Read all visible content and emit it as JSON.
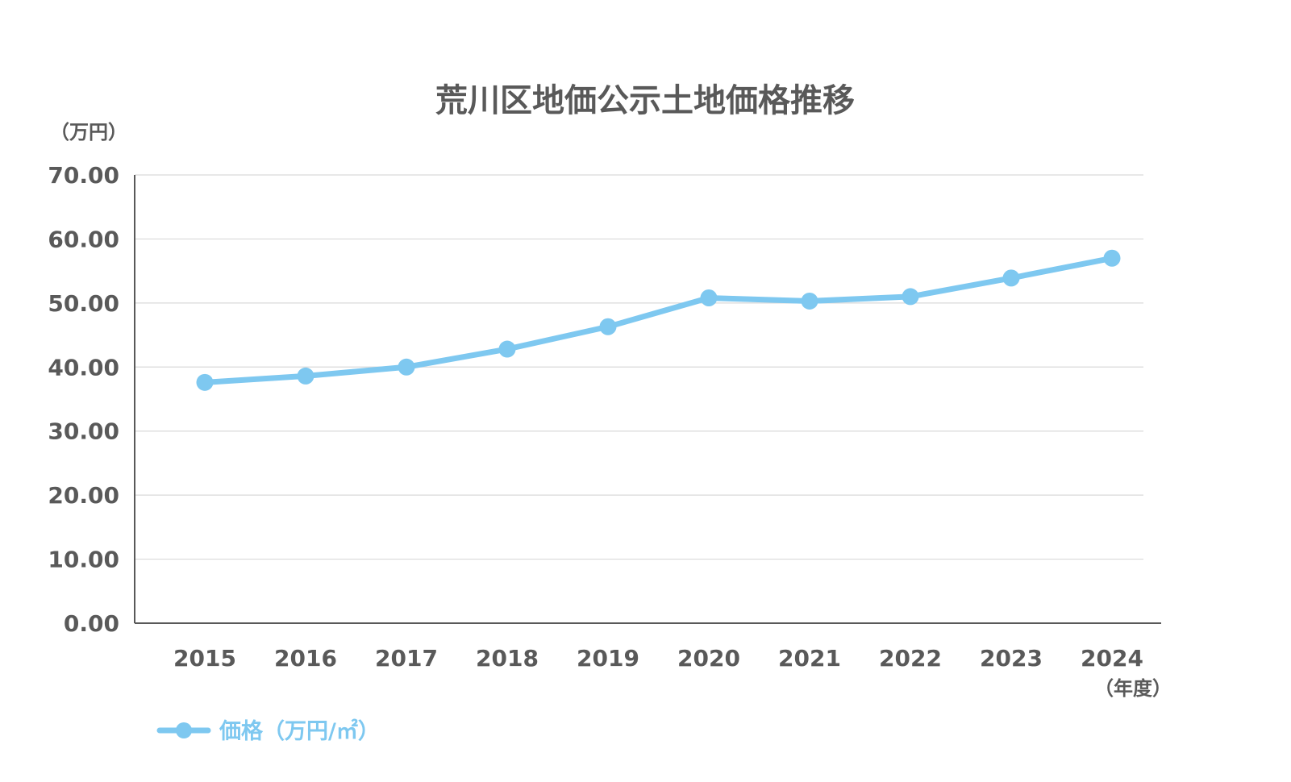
{
  "colors": {
    "series": "#7ec8f0",
    "text": "#595959",
    "grid": "#d9d9d9",
    "axis": "#595959"
  },
  "chart_data": {
    "type": "line",
    "title": "荒川区地価公示土地価格推移",
    "ylabel": "（万円）",
    "xlabel": "（年度）",
    "ylim": [
      0,
      70
    ],
    "y_ticks": [
      "0.00",
      "10.00",
      "20.00",
      "30.00",
      "40.00",
      "50.00",
      "60.00",
      "70.00"
    ],
    "categories": [
      "2015",
      "2016",
      "2017",
      "2018",
      "2019",
      "2020",
      "2021",
      "2022",
      "2023",
      "2024"
    ],
    "series": [
      {
        "name": "価格（万円/㎡）",
        "values": [
          37.6,
          38.6,
          40.0,
          42.8,
          46.3,
          50.8,
          50.3,
          51.0,
          53.9,
          57.0
        ]
      }
    ],
    "grid": true,
    "legend": "bottom-left"
  }
}
